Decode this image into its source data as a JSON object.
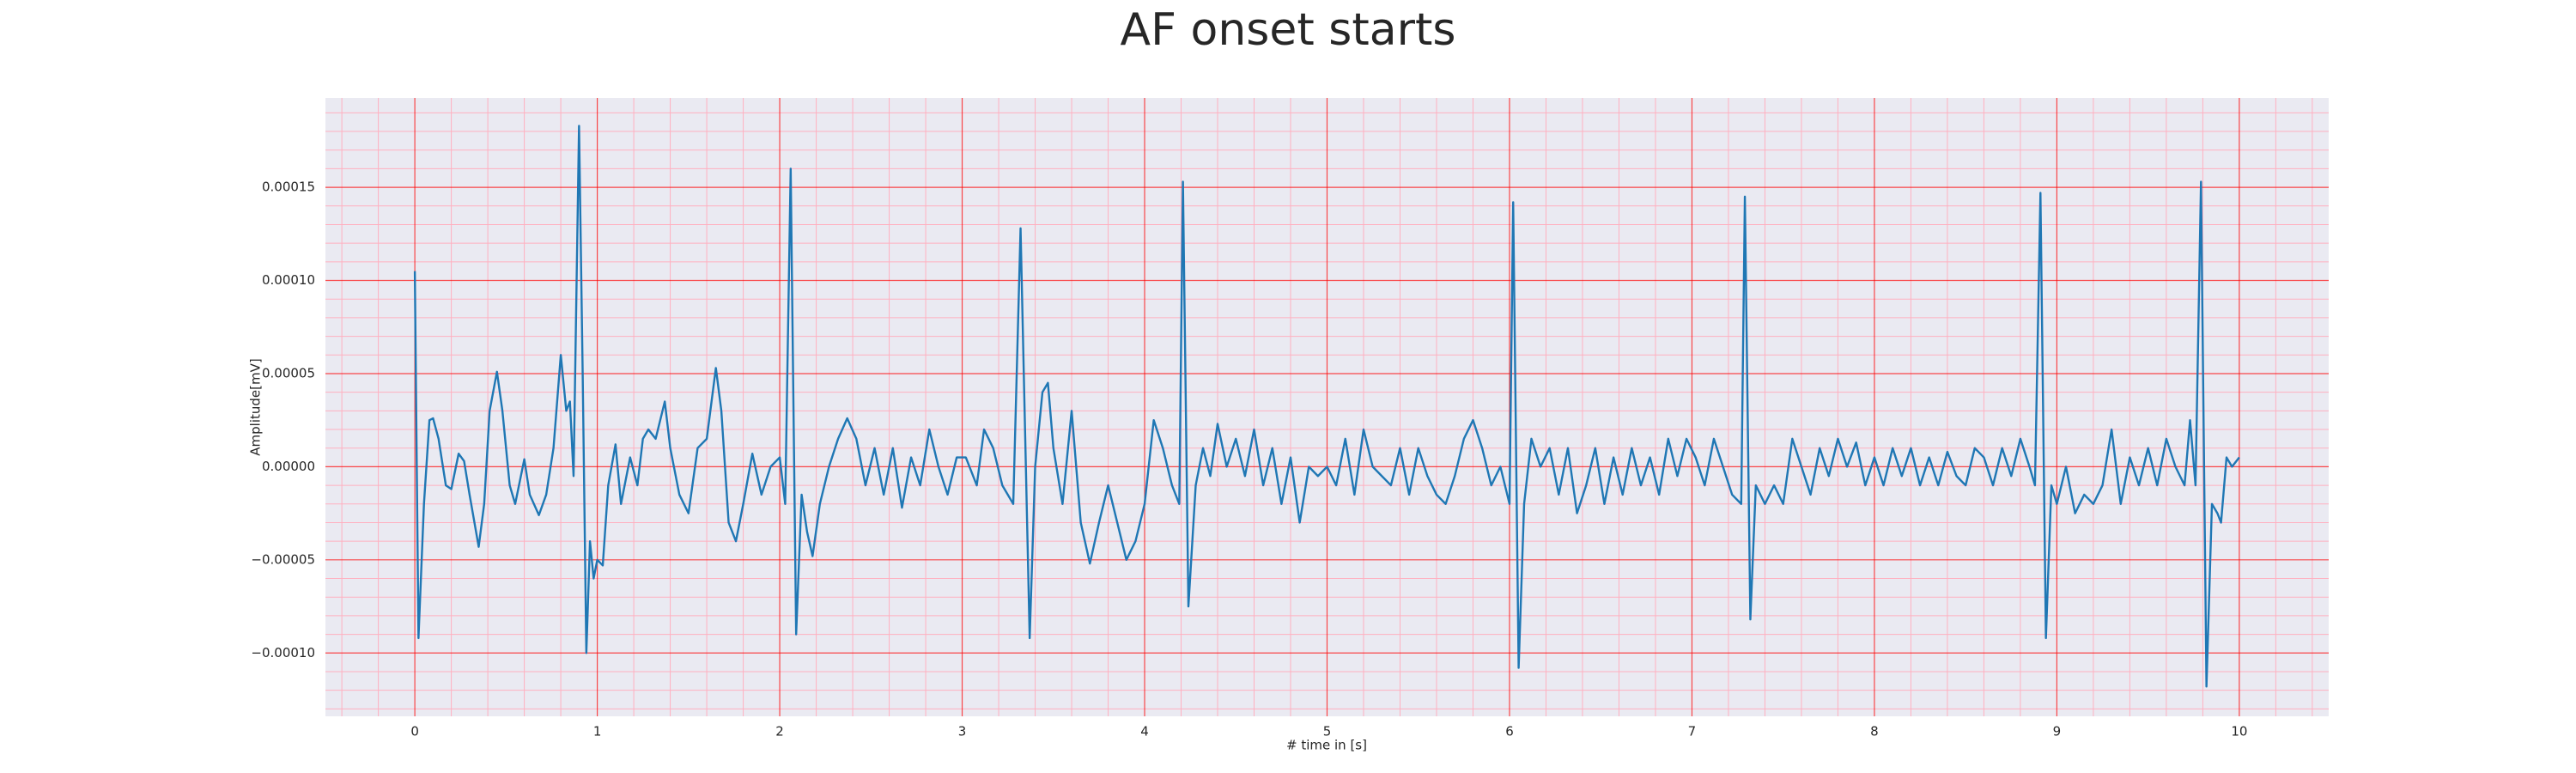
{
  "chart_data": {
    "type": "line",
    "title": "AF onset starts",
    "xlabel": "# time in [s]",
    "ylabel": "Amplitude[mV]",
    "color": "#1f77b4",
    "grid": true,
    "grid_color": "#ff0000",
    "minor_grid_color": "#ffb0c0",
    "background": "#eaeaf2",
    "xlim": [
      -0.49,
      10.49
    ],
    "ylim": [
      -0.000134,
      0.000198
    ],
    "xticks": [
      0,
      1,
      2,
      3,
      4,
      5,
      6,
      7,
      8,
      9,
      10
    ],
    "yticks": [
      {
        "value": -0.0001,
        "label": "−0.00010"
      },
      {
        "value": -5e-05,
        "label": "−0.00005"
      },
      {
        "value": 0,
        "label": "0.00000"
      },
      {
        "value": 5e-05,
        "label": "0.00005"
      },
      {
        "value": 0.0001,
        "label": "0.00010"
      },
      {
        "value": 0.00015,
        "label": "0.00015"
      }
    ],
    "xminorticks": [
      -0.4,
      -0.2,
      0.2,
      0.4,
      0.6,
      0.8,
      1.2,
      1.4,
      1.6,
      1.8,
      2.2,
      2.4,
      2.6,
      2.8,
      3.2,
      3.4,
      3.6,
      3.8,
      4.2,
      4.4,
      4.6,
      4.8,
      5.2,
      5.4,
      5.6,
      5.8,
      6.2,
      6.4,
      6.6,
      6.8,
      7.2,
      7.4,
      7.6,
      7.8,
      8.2,
      8.4,
      8.6,
      8.8,
      9.2,
      9.4,
      9.6,
      9.8,
      10.2,
      10.4
    ],
    "yminorticks": [
      -0.00013,
      -0.00012,
      -0.00011,
      -9e-05,
      -8e-05,
      -7e-05,
      -6e-05,
      -4e-05,
      -3e-05,
      -2e-05,
      -1e-05,
      1e-05,
      2e-05,
      3e-05,
      4e-05,
      6e-05,
      7e-05,
      8e-05,
      9e-05,
      0.00011,
      0.00012,
      0.00013,
      0.00014,
      0.00016,
      0.00017,
      0.00018,
      0.00019
    ],
    "x": [
      0,
      0.02,
      0.05,
      0.08,
      0.1,
      0.13,
      0.17,
      0.2,
      0.24,
      0.27,
      0.3,
      0.35,
      0.38,
      0.41,
      0.45,
      0.48,
      0.52,
      0.55,
      0.6,
      0.63,
      0.68,
      0.72,
      0.76,
      0.8,
      0.83,
      0.85,
      0.87,
      0.9,
      0.92,
      0.94,
      0.96,
      0.98,
      1.0,
      1.03,
      1.06,
      1.1,
      1.13,
      1.18,
      1.22,
      1.25,
      1.28,
      1.32,
      1.37,
      1.4,
      1.45,
      1.5,
      1.55,
      1.6,
      1.65,
      1.68,
      1.72,
      1.76,
      1.8,
      1.85,
      1.9,
      1.95,
      2.0,
      2.03,
      2.06,
      2.09,
      2.12,
      2.15,
      2.18,
      2.22,
      2.27,
      2.32,
      2.37,
      2.42,
      2.47,
      2.52,
      2.57,
      2.62,
      2.67,
      2.72,
      2.77,
      2.82,
      2.87,
      2.92,
      2.97,
      3.02,
      3.08,
      3.12,
      3.17,
      3.22,
      3.28,
      3.32,
      3.37,
      3.4,
      3.44,
      3.47,
      3.5,
      3.55,
      3.6,
      3.65,
      3.7,
      3.75,
      3.8,
      3.85,
      3.9,
      3.95,
      4.0,
      4.05,
      4.1,
      4.15,
      4.19,
      4.21,
      4.24,
      4.28,
      4.32,
      4.36,
      4.4,
      4.45,
      4.5,
      4.55,
      4.6,
      4.65,
      4.7,
      4.75,
      4.8,
      4.85,
      4.9,
      4.95,
      5.0,
      5.05,
      5.1,
      5.15,
      5.2,
      5.25,
      5.3,
      5.35,
      5.4,
      5.45,
      5.5,
      5.55,
      5.6,
      5.65,
      5.7,
      5.75,
      5.8,
      5.85,
      5.9,
      5.95,
      6.0,
      6.02,
      6.05,
      6.08,
      6.12,
      6.17,
      6.22,
      6.27,
      6.32,
      6.37,
      6.42,
      6.47,
      6.52,
      6.57,
      6.62,
      6.67,
      6.72,
      6.77,
      6.82,
      6.87,
      6.92,
      6.97,
      7.02,
      7.07,
      7.12,
      7.17,
      7.22,
      7.27,
      7.29,
      7.32,
      7.35,
      7.4,
      7.45,
      7.5,
      7.55,
      7.6,
      7.65,
      7.7,
      7.75,
      7.8,
      7.85,
      7.9,
      7.95,
      8.0,
      8.05,
      8.1,
      8.15,
      8.2,
      8.25,
      8.3,
      8.35,
      8.4,
      8.45,
      8.5,
      8.55,
      8.6,
      8.65,
      8.7,
      8.75,
      8.8,
      8.85,
      8.88,
      8.91,
      8.94,
      8.97,
      9.0,
      9.05,
      9.1,
      9.15,
      9.2,
      9.25,
      9.3,
      9.35,
      9.4,
      9.45,
      9.5,
      9.55,
      9.6,
      9.65,
      9.7,
      9.73,
      9.76,
      9.79,
      9.82,
      9.85,
      9.88,
      9.9,
      9.93,
      9.96,
      10.0
    ],
    "values": [
      0.000105,
      -9.2e-05,
      -2e-05,
      2.5e-05,
      2.6e-05,
      1.5e-05,
      -1e-05,
      -1.2e-05,
      7e-06,
      3e-06,
      -1.5e-05,
      -4.3e-05,
      -2e-05,
      3e-05,
      5.1e-05,
      3e-05,
      -1e-05,
      -2e-05,
      4e-06,
      -1.5e-05,
      -2.6e-05,
      -1.5e-05,
      1e-05,
      6e-05,
      3e-05,
      3.5e-05,
      -5e-06,
      0.000183,
      5e-05,
      -0.0001,
      -4e-05,
      -6e-05,
      -5e-05,
      -5.3e-05,
      -1e-05,
      1.2e-05,
      -2e-05,
      5e-06,
      -1e-05,
      1.5e-05,
      2e-05,
      1.5e-05,
      3.5e-05,
      1e-05,
      -1.5e-05,
      -2.5e-05,
      1e-05,
      1.5e-05,
      5.3e-05,
      3e-05,
      -3e-05,
      -4e-05,
      -2e-05,
      7e-06,
      -1.5e-05,
      0,
      5e-06,
      -2e-05,
      0.00016,
      -9e-05,
      -1.5e-05,
      -3.5e-05,
      -4.8e-05,
      -2e-05,
      0,
      1.5e-05,
      2.6e-05,
      1.5e-05,
      -1e-05,
      1e-05,
      -1.5e-05,
      1e-05,
      -2.2e-05,
      5e-06,
      -1e-05,
      2e-05,
      0,
      -1.5e-05,
      5e-06,
      5e-06,
      -1e-05,
      2e-05,
      1e-05,
      -1e-05,
      -2e-05,
      0.000128,
      -9.2e-05,
      0,
      4e-05,
      4.5e-05,
      1e-05,
      -2e-05,
      3e-05,
      -3e-05,
      -5.2e-05,
      -3e-05,
      -1e-05,
      -3e-05,
      -5e-05,
      -4e-05,
      -2e-05,
      2.5e-05,
      1e-05,
      -1e-05,
      -2e-05,
      0.000153,
      -7.5e-05,
      -1e-05,
      1e-05,
      -5e-06,
      2.3e-05,
      0,
      1.5e-05,
      -5e-06,
      2e-05,
      -1e-05,
      1e-05,
      -2e-05,
      5e-06,
      -3e-05,
      0,
      -5e-06,
      0,
      -1e-05,
      1.5e-05,
      -1.5e-05,
      2e-05,
      0,
      -5e-06,
      -1e-05,
      1e-05,
      -1.5e-05,
      1e-05,
      -5e-06,
      -1.5e-05,
      -2e-05,
      -5e-06,
      1.5e-05,
      2.5e-05,
      1e-05,
      -1e-05,
      0,
      -2e-05,
      0.000142,
      -0.000108,
      -2e-05,
      1.5e-05,
      0,
      1e-05,
      -1.5e-05,
      1e-05,
      -2.5e-05,
      -1e-05,
      1e-05,
      -2e-05,
      5e-06,
      -1.5e-05,
      1e-05,
      -1e-05,
      5e-06,
      -1.5e-05,
      1.5e-05,
      -5e-06,
      1.5e-05,
      5e-06,
      -1e-05,
      1.5e-05,
      0,
      -1.5e-05,
      -2e-05,
      0.000145,
      -8.2e-05,
      -1e-05,
      -2e-05,
      -1e-05,
      -2e-05,
      1.5e-05,
      0,
      -1.5e-05,
      1e-05,
      -5e-06,
      1.5e-05,
      0,
      1.3e-05,
      -1e-05,
      5e-06,
      -1e-05,
      1e-05,
      -5e-06,
      1e-05,
      -1e-05,
      5e-06,
      -1e-05,
      8e-06,
      -5e-06,
      -1e-05,
      1e-05,
      5e-06,
      -1e-05,
      1e-05,
      -5e-06,
      1.5e-05,
      0,
      -1e-05,
      0.000147,
      -9.2e-05,
      -1e-05,
      -2e-05,
      0,
      -2.5e-05,
      -1.5e-05,
      -2e-05,
      -1e-05,
      2e-05,
      -2e-05,
      5e-06,
      -1e-05,
      1e-05,
      -1e-05,
      1.5e-05,
      0,
      -1e-05,
      2.5e-05,
      -1e-05,
      0.000153,
      -0.000118,
      -2e-05,
      -2.5e-05,
      -3e-05,
      5e-06,
      0,
      5e-06
    ]
  }
}
